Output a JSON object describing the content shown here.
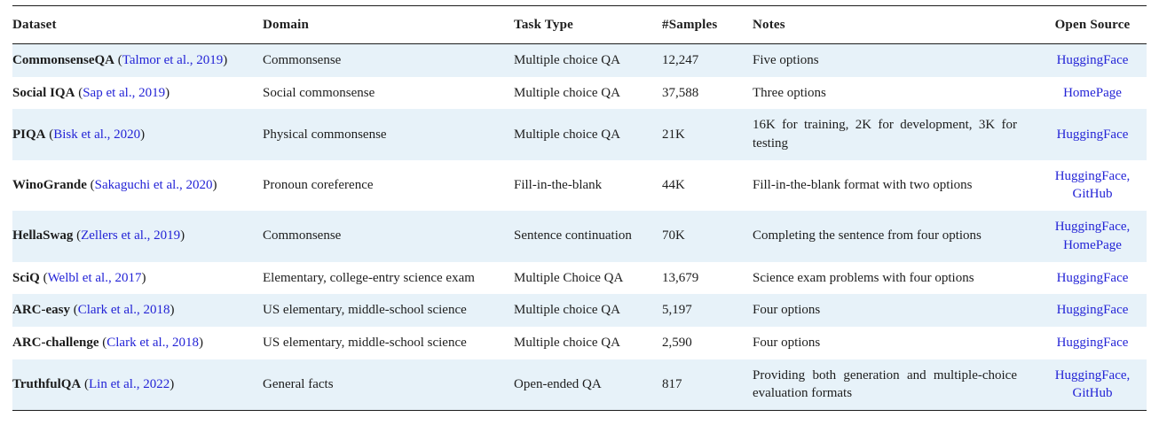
{
  "theme": {
    "stripe_bg": "#e7f2f9",
    "link_color": "#2323d6",
    "rule_color": "#1c1c1c",
    "text_color": "#1d1d1d",
    "page_bg": "#ffffff"
  },
  "table": {
    "columns": [
      {
        "key": "dataset",
        "label": "Dataset"
      },
      {
        "key": "domain",
        "label": "Domain"
      },
      {
        "key": "task_type",
        "label": "Task Type"
      },
      {
        "key": "samples",
        "label": "#Samples"
      },
      {
        "key": "notes",
        "label": "Notes"
      },
      {
        "key": "open_source",
        "label": "Open Source"
      }
    ],
    "rows": [
      {
        "dataset_name": "CommonsenseQA",
        "citation": "Talmor et al., 2019",
        "domain": "Commonsense",
        "task_type": "Multiple choice QA",
        "samples": "12,247",
        "notes": "Five options",
        "open_source": [
          "HuggingFace"
        ]
      },
      {
        "dataset_name": "Social IQA",
        "citation": "Sap et al., 2019",
        "domain": "Social commonsense",
        "task_type": "Multiple choice QA",
        "samples": "37,588",
        "notes": "Three options",
        "open_source": [
          "HomePage"
        ]
      },
      {
        "dataset_name": "PIQA",
        "citation": "Bisk et al., 2020",
        "domain": "Physical commonsense",
        "task_type": "Multiple choice QA",
        "samples": "21K",
        "notes": "16K for training, 2K for development, 3K for testing",
        "open_source": [
          "HuggingFace"
        ]
      },
      {
        "dataset_name": "WinoGrande",
        "citation": "Sakaguchi et al., 2020",
        "domain": "Pronoun coreference",
        "task_type": "Fill-in-the-blank",
        "samples": "44K",
        "notes": "Fill-in-the-blank format with two options",
        "open_source": [
          "HuggingFace",
          "GitHub"
        ]
      },
      {
        "dataset_name": "HellaSwag",
        "citation": "Zellers et al., 2019",
        "domain": "Commonsense",
        "task_type": "Sentence continuation",
        "samples": "70K",
        "notes": "Completing the sentence from four options",
        "open_source": [
          "HuggingFace",
          "HomePage"
        ]
      },
      {
        "dataset_name": "SciQ",
        "citation": "Welbl et al., 2017",
        "domain": "Elementary, college-entry science exam",
        "task_type": "Multiple Choice QA",
        "samples": "13,679",
        "notes": "Science exam problems with four options",
        "open_source": [
          "HuggingFace"
        ]
      },
      {
        "dataset_name": "ARC-easy",
        "citation": "Clark et al., 2018",
        "domain": "US elementary, middle-school science",
        "task_type": "Multiple choice QA",
        "samples": "5,197",
        "notes": "Four options",
        "open_source": [
          "HuggingFace"
        ]
      },
      {
        "dataset_name": "ARC-challenge",
        "citation": "Clark et al., 2018",
        "domain": "US elementary, middle-school science",
        "task_type": "Multiple choice QA",
        "samples": "2,590",
        "notes": "Four options",
        "open_source": [
          "HuggingFace"
        ]
      },
      {
        "dataset_name": "TruthfulQA",
        "citation": "Lin et al., 2022",
        "domain": "General facts",
        "task_type": "Open-ended QA",
        "samples": "817",
        "notes": "Providing both generation and multiple-choice evaluation formats",
        "open_source": [
          "HuggingFace",
          "GitHub"
        ]
      }
    ]
  }
}
